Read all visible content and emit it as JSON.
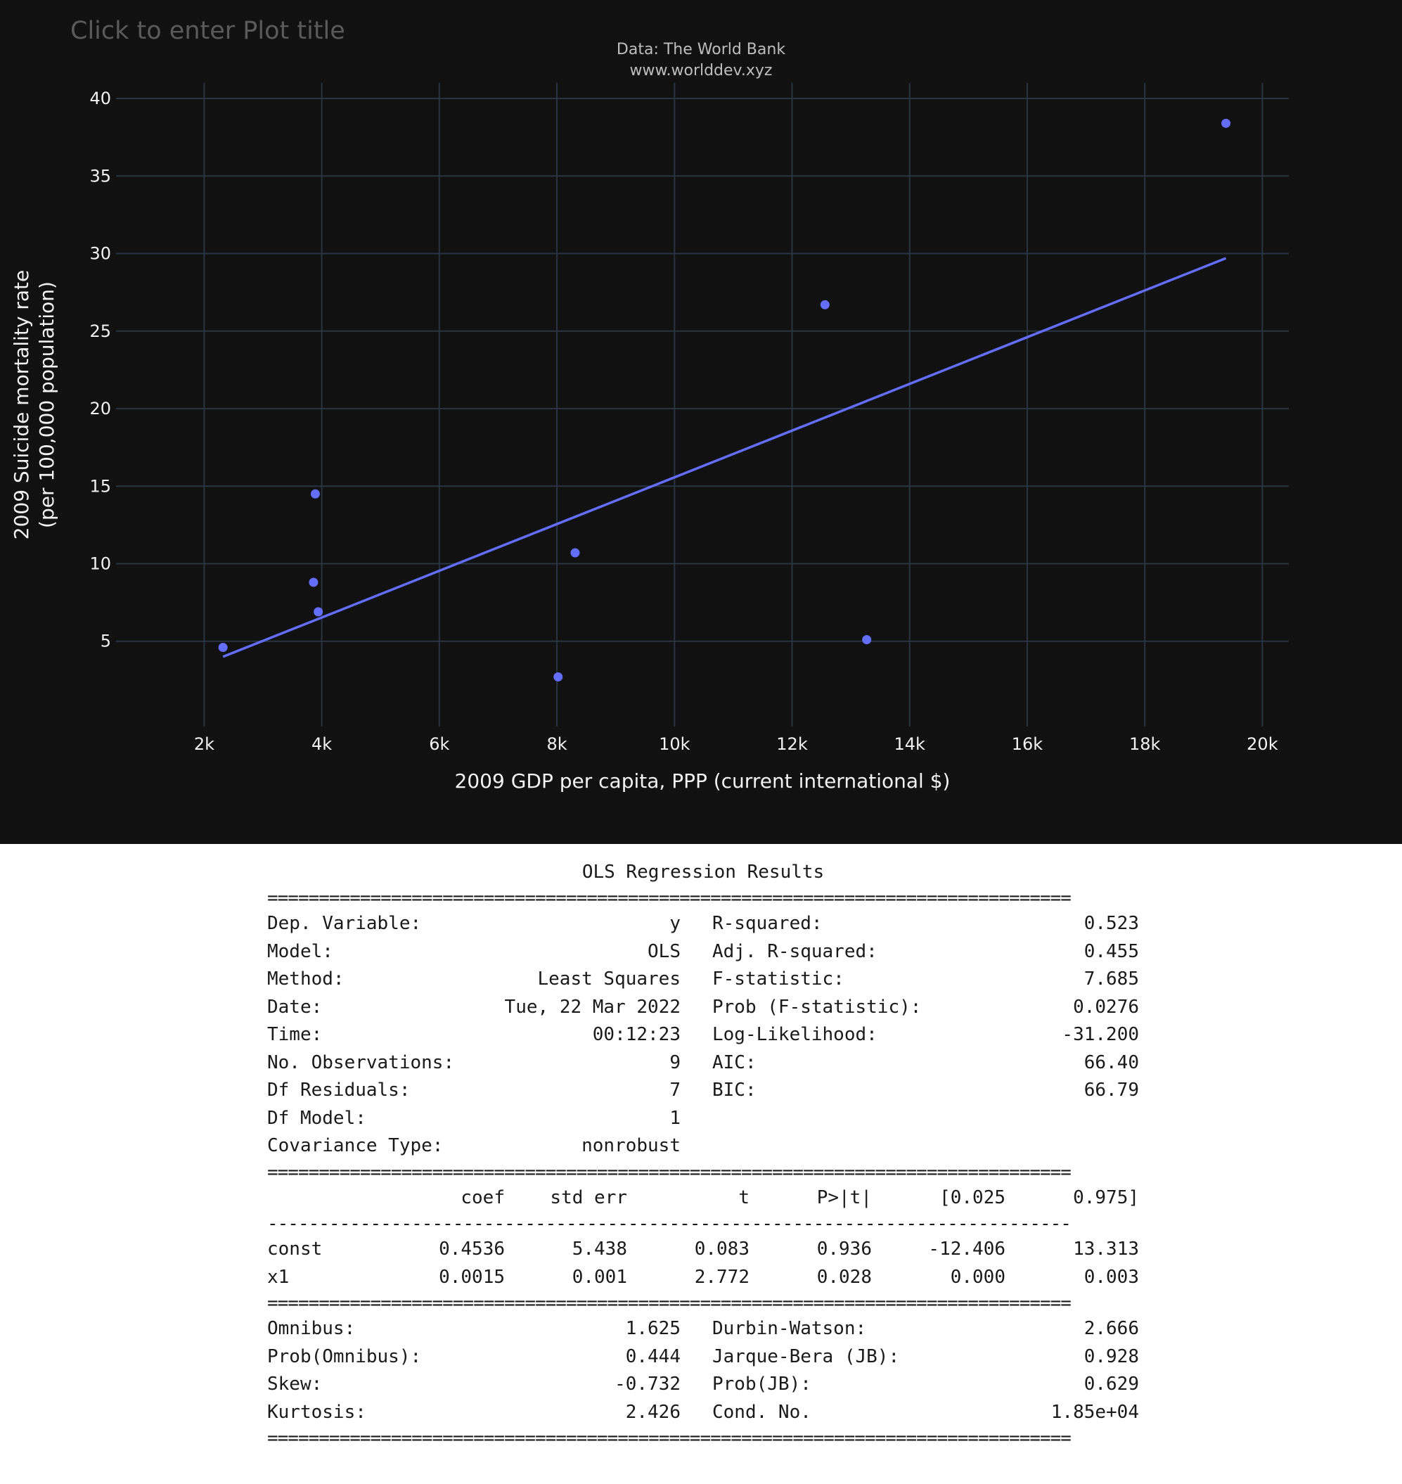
{
  "plot": {
    "title_placeholder": "Click to enter Plot title",
    "source_line1": "Data: The World Bank",
    "source_line2": "www.worlddev.xyz"
  },
  "chart_data": {
    "type": "scatter",
    "title": "",
    "xlabel": "2009 GDP per capita, PPP (current international $)",
    "ylabel_line1": "2009 Suicide mortality rate",
    "ylabel_line2": "(per 100,000 population)",
    "xlim": [
      500,
      20450
    ],
    "ylim": [
      -0.5,
      41
    ],
    "x_ticks": [
      2000,
      4000,
      6000,
      8000,
      10000,
      12000,
      14000,
      16000,
      18000,
      20000
    ],
    "x_tick_labels": [
      "2k",
      "4k",
      "6k",
      "8k",
      "10k",
      "12k",
      "14k",
      "16k",
      "18k",
      "20k"
    ],
    "y_ticks": [
      5,
      10,
      15,
      20,
      25,
      30,
      35,
      40
    ],
    "y_tick_labels": [
      "5",
      "10",
      "15",
      "20",
      "25",
      "30",
      "35",
      "40"
    ],
    "grid": true,
    "marker_color": "#636efa",
    "background": "#111111",
    "grid_color": "#283442",
    "series": [
      {
        "mode": "markers",
        "points": [
          {
            "x": 2320,
            "y": 4.6
          },
          {
            "x": 3860,
            "y": 8.8
          },
          {
            "x": 3890,
            "y": 14.5
          },
          {
            "x": 3940,
            "y": 6.9
          },
          {
            "x": 8020,
            "y": 2.7
          },
          {
            "x": 8310,
            "y": 10.7
          },
          {
            "x": 12560,
            "y": 26.7
          },
          {
            "x": 13270,
            "y": 5.1
          },
          {
            "x": 19380,
            "y": 38.4
          }
        ]
      },
      {
        "mode": "lines",
        "points": [
          {
            "x": 2320,
            "y": 4.0
          },
          {
            "x": 19380,
            "y": 29.7
          }
        ]
      }
    ]
  },
  "ols": {
    "title": "OLS Regression Results",
    "rule_double": "==============================================================================",
    "rule_single": "------------------------------------------------------------------------------",
    "top": [
      {
        "l1": "Dep. Variable:",
        "v1": "y",
        "l2": "R-squared:",
        "v2": "0.523"
      },
      {
        "l1": "Model:",
        "v1": "OLS",
        "l2": "Adj. R-squared:",
        "v2": "0.455"
      },
      {
        "l1": "Method:",
        "v1": "Least Squares",
        "l2": "F-statistic:",
        "v2": "7.685"
      },
      {
        "l1": "Date:",
        "v1": "Tue, 22 Mar 2022",
        "l2": "Prob (F-statistic):",
        "v2": "0.0276"
      },
      {
        "l1": "Time:",
        "v1": "00:12:23",
        "l2": "Log-Likelihood:",
        "v2": "-31.200"
      },
      {
        "l1": "No. Observations:",
        "v1": "9",
        "l2": "AIC:",
        "v2": "66.40"
      },
      {
        "l1": "Df Residuals:",
        "v1": "7",
        "l2": "BIC:",
        "v2": "66.79"
      },
      {
        "l1": "Df Model:",
        "v1": "1",
        "l2": "",
        "v2": ""
      },
      {
        "l1": "Covariance Type:",
        "v1": "nonrobust",
        "l2": "",
        "v2": ""
      }
    ],
    "coef_header": [
      "",
      "coef",
      "std err",
      "t",
      "P>|t|",
      "[0.025",
      "0.975]"
    ],
    "coef_rows": [
      [
        "const",
        "0.4536",
        "5.438",
        "0.083",
        "0.936",
        "-12.406",
        "13.313"
      ],
      [
        "x1",
        "0.0015",
        "0.001",
        "2.772",
        "0.028",
        "0.000",
        "0.003"
      ]
    ],
    "bottom": [
      {
        "l1": "Omnibus:",
        "v1": "1.625",
        "l2": "Durbin-Watson:",
        "v2": "2.666"
      },
      {
        "l1": "Prob(Omnibus):",
        "v1": "0.444",
        "l2": "Jarque-Bera (JB):",
        "v2": "0.928"
      },
      {
        "l1": "Skew:",
        "v1": "-0.732",
        "l2": "Prob(JB):",
        "v2": "0.629"
      },
      {
        "l1": "Kurtosis:",
        "v1": "2.426",
        "l2": "Cond. No.",
        "v2": "1.85e+04"
      }
    ]
  }
}
